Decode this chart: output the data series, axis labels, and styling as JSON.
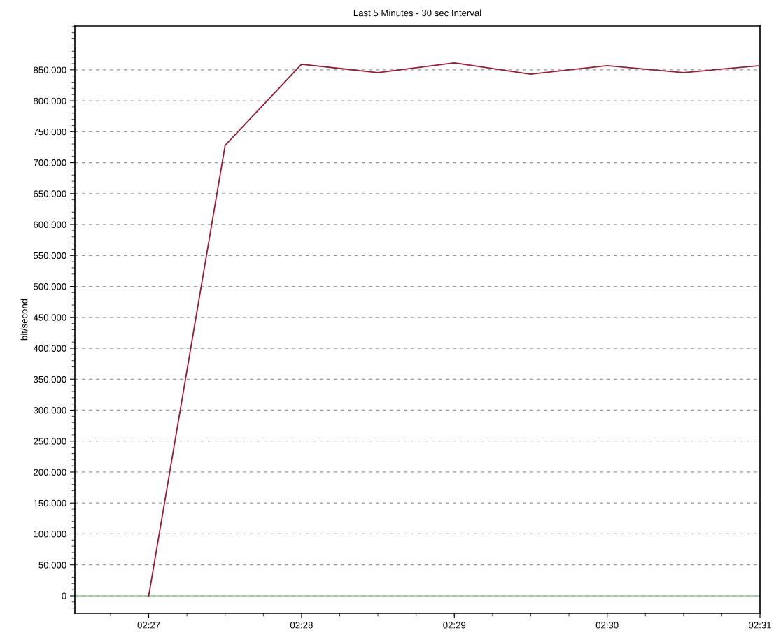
{
  "chart_data": {
    "type": "line",
    "title": "Last 5 Minutes - 30 sec Interval",
    "ylabel": "bit/second",
    "x": [
      2.45,
      2.458333,
      2.466667,
      2.475,
      2.483333,
      2.491667,
      2.5,
      2.508333,
      2.516667
    ],
    "series": [
      {
        "color": "#9b1b30",
        "values": [
          0,
          728000,
          859000,
          845500,
          861300,
          843000,
          856800,
          845500,
          856800
        ]
      }
    ],
    "xlim": [
      2.441944,
      2.516667
    ],
    "xticks": [
      {
        "value": 2.45,
        "label": "02:27"
      },
      {
        "value": 2.466667,
        "label": "02:28"
      },
      {
        "value": 2.483333,
        "label": "02:29"
      },
      {
        "value": 2.5,
        "label": "02:30"
      },
      {
        "value": 2.516667,
        "label": "02:31"
      }
    ],
    "ylim": [
      -28300,
      921000
    ],
    "yticks": [
      {
        "value": 0,
        "label": "0"
      },
      {
        "value": 50000,
        "label": "50.000"
      },
      {
        "value": 100000,
        "label": "100.000"
      },
      {
        "value": 150000,
        "label": "150.000"
      },
      {
        "value": 200000,
        "label": "200.000"
      },
      {
        "value": 250000,
        "label": "250.000"
      },
      {
        "value": 300000,
        "label": "300.000"
      },
      {
        "value": 350000,
        "label": "350.000"
      },
      {
        "value": 400000,
        "label": "400.000"
      },
      {
        "value": 450000,
        "label": "450.000"
      },
      {
        "value": 500000,
        "label": "500.000"
      },
      {
        "value": 550000,
        "label": "550.000"
      },
      {
        "value": 600000,
        "label": "600.000"
      },
      {
        "value": 650000,
        "label": "650.000"
      },
      {
        "value": 700000,
        "label": "700.000"
      },
      {
        "value": 750000,
        "label": "750.000"
      },
      {
        "value": 800000,
        "label": "800.000"
      },
      {
        "value": 850000,
        "label": "850.000"
      }
    ],
    "ref_lines": [
      {
        "axis": "y",
        "value": 0,
        "color": "#90d090"
      }
    ],
    "grid": "y",
    "marker": "none",
    "line_style": "solid"
  }
}
